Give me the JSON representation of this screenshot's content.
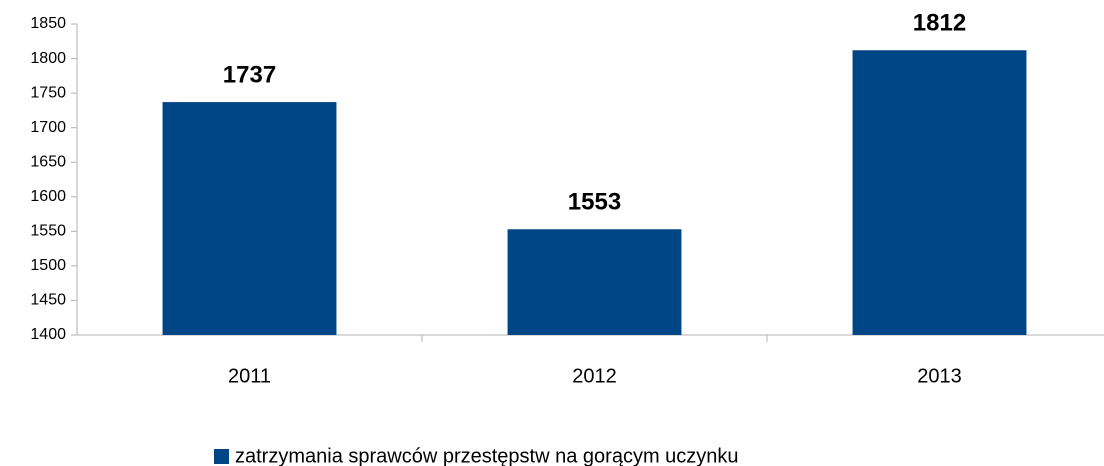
{
  "chart_data": {
    "type": "bar",
    "categories": [
      "2011",
      "2012",
      "2013"
    ],
    "series": [
      {
        "name": "zatrzymania sprawców przestępstw na gorącym uczynku",
        "color": "#004586",
        "values": [
          1737,
          1553,
          1812
        ]
      }
    ],
    "ylim": [
      1400,
      1850
    ],
    "yticks": [
      1400,
      1450,
      1500,
      1550,
      1600,
      1650,
      1700,
      1750,
      1800,
      1850
    ],
    "grid": false,
    "legend": "bottom"
  }
}
